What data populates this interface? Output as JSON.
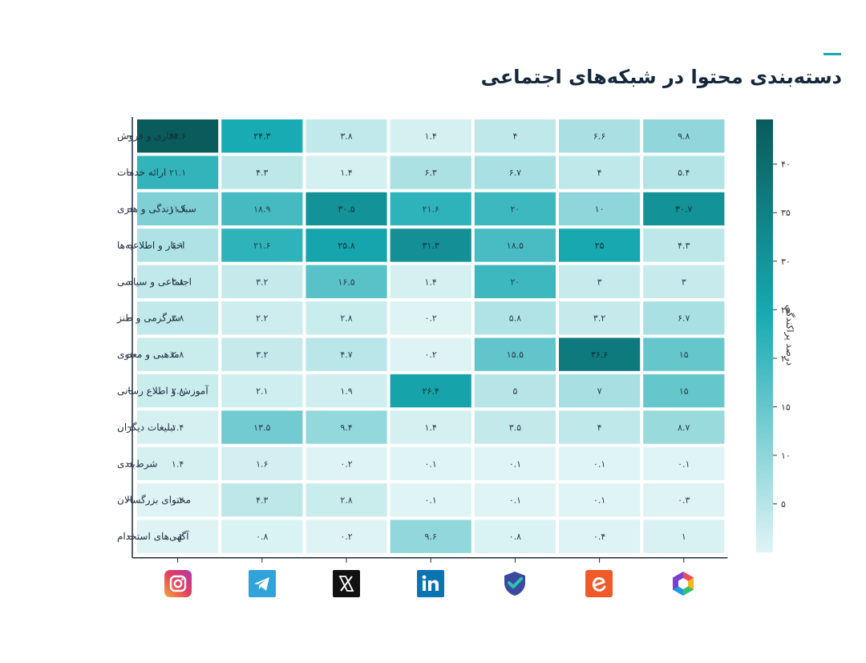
{
  "title": "دسته‌بندی محتوا در شبکه‌های اجتماعی",
  "colorbar_label": "درصد پراکندگی",
  "colors": {
    "min": "#e0f4f5",
    "mid": "#17aab2",
    "max": "#0a5b5b",
    "accent": "#1fa9b5"
  },
  "icons": [
    "instagram-icon",
    "telegram-icon",
    "x-icon",
    "linkedin-icon",
    "shield-check-icon",
    "e-logo-icon",
    "hexagon-logo-icon"
  ],
  "chart_data": {
    "type": "heatmap",
    "categories": [
      "تجاری و فروش",
      "ارائه خدمات",
      "سبک زندگی و هنری",
      "اخبار و اطلاعیه‌ها",
      "اجتماعی و سیاسی",
      "سرگرمی و طنز",
      "مذهبی و معنوی",
      "آموزش و اطلاع رسانی",
      "تبلیغات دیگران",
      "شرط‌بندی",
      "محتوای بزرگسالان",
      "آگهی‌های استخدام"
    ],
    "columns": [
      "Instagram",
      "Telegram",
      "X",
      "LinkedIn",
      "—",
      "—",
      "—"
    ],
    "values": [
      [
        44.6,
        24.3,
        3.8,
        1.4,
        4,
        6.6,
        9.8
      ],
      [
        21.1,
        4.3,
        1.4,
        6.3,
        6.7,
        4,
        5.4
      ],
      [
        11.8,
        18.9,
        30.5,
        21.6,
        20,
        10,
        30.7
      ],
      [
        6.1,
        21.6,
        25.8,
        31.3,
        18.5,
        25,
        4.3
      ],
      [
        3.8,
        3.2,
        16.5,
        1.4,
        20,
        3,
        3
      ],
      [
        3.8,
        2.2,
        2.8,
        0.2,
        5.8,
        3.2,
        6.7
      ],
      [
        2.8,
        3.2,
        4.7,
        0.2,
        15.5,
        36.6,
        15
      ],
      [
        2.8,
        2.1,
        1.9,
        26.4,
        5,
        7,
        15
      ],
      [
        1.4,
        13.5,
        9.4,
        1.4,
        3.5,
        4,
        8.7
      ],
      [
        1.4,
        1.6,
        0.2,
        0.1,
        0.1,
        0.1,
        0.1
      ],
      [
        0.2,
        4.3,
        2.8,
        0.1,
        0.1,
        0.1,
        0.3
      ],
      [
        0.2,
        0.8,
        0.2,
        9.6,
        0.8,
        0.4,
        1
      ]
    ],
    "value_labels": [
      [
        "۴۴.۶",
        "۲۴.۳",
        "۳.۸",
        "۱.۴",
        "۴",
        "۶.۶",
        "۹.۸"
      ],
      [
        "۲۱.۱",
        "۴.۳",
        "۱.۴",
        "۶.۳",
        "۶.۷",
        "۴",
        "۵.۴"
      ],
      [
        "۱۱.۸",
        "۱۸.۹",
        "۳۰.۵",
        "۲۱.۶",
        "۲۰",
        "۱۰",
        "۳۰.۷"
      ],
      [
        "۶.۱",
        "۲۱.۶",
        "۲۵.۸",
        "۳۱.۳",
        "۱۸.۵",
        "۲۵",
        "۴.۳"
      ],
      [
        "۳.۸",
        "۳.۲",
        "۱۶.۵",
        "۱.۴",
        "۲۰",
        "۳",
        "۳"
      ],
      [
        "۳.۸",
        "۲.۲",
        "۲.۸",
        "۰.۲",
        "۵.۸",
        "۳.۲",
        "۶.۷"
      ],
      [
        "۲.۸",
        "۳.۲",
        "۴.۷",
        "۰.۲",
        "۱۵.۵",
        "۳۶.۶",
        "۱۵"
      ],
      [
        "۲.۸",
        "۲.۱",
        "۱.۹",
        "۲۶.۴",
        "۵",
        "۷",
        "۱۵"
      ],
      [
        "۱.۴",
        "۱۳.۵",
        "۹.۴",
        "۱.۴",
        "۳.۵",
        "۴",
        "۸.۷"
      ],
      [
        "۱.۴",
        "۱.۶",
        "۰.۲",
        "۰.۱",
        "۰.۱",
        "۰.۱",
        "۰.۱"
      ],
      [
        "۰.۲",
        "۴.۳",
        "۲.۸",
        "۰.۱",
        "۰.۱",
        "۰.۱",
        "۰.۳"
      ],
      [
        "۰.۲",
        "۰.۸",
        "۰.۲",
        "۹.۶",
        "۰.۸",
        "۰.۴",
        "۱"
      ]
    ],
    "colorbar": {
      "range": [
        0,
        44.6
      ],
      "ticks": [
        40,
        35,
        30,
        25,
        20,
        15,
        10,
        5
      ],
      "tick_labels": [
        "۴۰",
        "۳۵",
        "۳۰",
        "۲۵",
        "۲۰",
        "۱۵",
        "۱۰",
        "۵"
      ]
    }
  }
}
